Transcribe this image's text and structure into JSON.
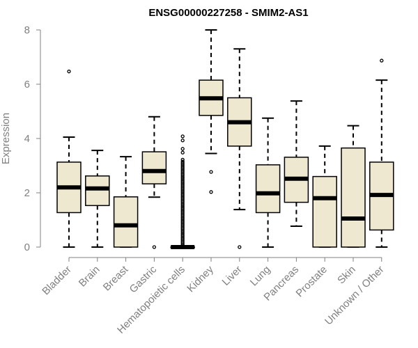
{
  "chart_data": {
    "type": "boxplot",
    "title": "ENSG00000227258 - SMIM2-AS1",
    "xlabel": "",
    "ylabel": "Expression",
    "ylim": [
      0,
      8
    ],
    "yticks": [
      "0",
      "2",
      "4",
      "6",
      "8"
    ],
    "grid": false,
    "colors": {
      "box_fill": "#efe8d0",
      "box_stroke": "#000000",
      "axis": "#808080"
    },
    "categories": [
      "Bladder",
      "Brain",
      "Breast",
      "Gastric",
      "Hematopoietic cells",
      "Kidney",
      "Liver",
      "Lung",
      "Pancreas",
      "Prostate",
      "Skin",
      "Unknown / Other"
    ],
    "series": [
      {
        "category": "Bladder",
        "min": 0,
        "q1": 1.27,
        "median": 2.2,
        "q3": 3.13,
        "max": 4.05,
        "outliers": [
          6.47
        ]
      },
      {
        "category": "Brain",
        "min": 0,
        "q1": 1.53,
        "median": 2.16,
        "q3": 2.62,
        "max": 3.56,
        "outliers": []
      },
      {
        "category": "Breast",
        "min": 0,
        "q1": 0,
        "median": 0.8,
        "q3": 1.85,
        "max": 3.33,
        "outliers": []
      },
      {
        "category": "Gastric",
        "min": 1.84,
        "q1": 2.33,
        "median": 2.8,
        "q3": 3.51,
        "max": 4.8,
        "outliers": [
          0
        ]
      },
      {
        "category": "Hematopoietic cells",
        "min": 0,
        "q1": 0,
        "median": 0,
        "q3": 0,
        "max": 0,
        "outliers": [
          0.05,
          0.1,
          0.15,
          0.2,
          0.25,
          0.3,
          0.35,
          0.4,
          0.45,
          0.5,
          0.55,
          0.6,
          0.65,
          0.7,
          0.75,
          0.8,
          0.85,
          0.9,
          0.95,
          1.0,
          1.05,
          1.1,
          1.15,
          1.2,
          1.25,
          1.3,
          1.35,
          1.4,
          1.45,
          1.5,
          1.55,
          1.6,
          1.65,
          1.7,
          1.75,
          1.8,
          1.85,
          1.9,
          1.95,
          2.0,
          2.05,
          2.1,
          2.15,
          2.2,
          2.25,
          2.3,
          2.35,
          2.4,
          2.45,
          2.5,
          2.55,
          2.6,
          2.65,
          2.7,
          2.75,
          2.8,
          2.85,
          2.9,
          2.95,
          3.0,
          3.05,
          3.1,
          3.15,
          3.22,
          3.48,
          3.62,
          3.93,
          4.08
        ]
      },
      {
        "category": "Kidney",
        "min": 3.45,
        "q1": 4.85,
        "median": 5.48,
        "q3": 6.15,
        "max": 8.0,
        "outliers": [
          2.77,
          2.03
        ]
      },
      {
        "category": "Liver",
        "min": 1.38,
        "q1": 3.72,
        "median": 4.6,
        "q3": 5.5,
        "max": 7.3,
        "outliers": [
          0
        ]
      },
      {
        "category": "Lung",
        "min": 0,
        "q1": 1.27,
        "median": 1.98,
        "q3": 3.03,
        "max": 4.75,
        "outliers": []
      },
      {
        "category": "Pancreas",
        "min": 0.77,
        "q1": 1.65,
        "median": 2.52,
        "q3": 3.31,
        "max": 5.38,
        "outliers": []
      },
      {
        "category": "Prostate",
        "min": 0,
        "q1": 0,
        "median": 1.8,
        "q3": 2.6,
        "max": 3.72,
        "outliers": []
      },
      {
        "category": "Skin",
        "min": 0,
        "q1": 0,
        "median": 1.05,
        "q3": 3.65,
        "max": 4.47,
        "outliers": []
      },
      {
        "category": "Unknown / Other",
        "min": 0,
        "q1": 0.63,
        "median": 1.92,
        "q3": 3.13,
        "max": 6.15,
        "outliers": [
          6.87
        ]
      }
    ]
  }
}
